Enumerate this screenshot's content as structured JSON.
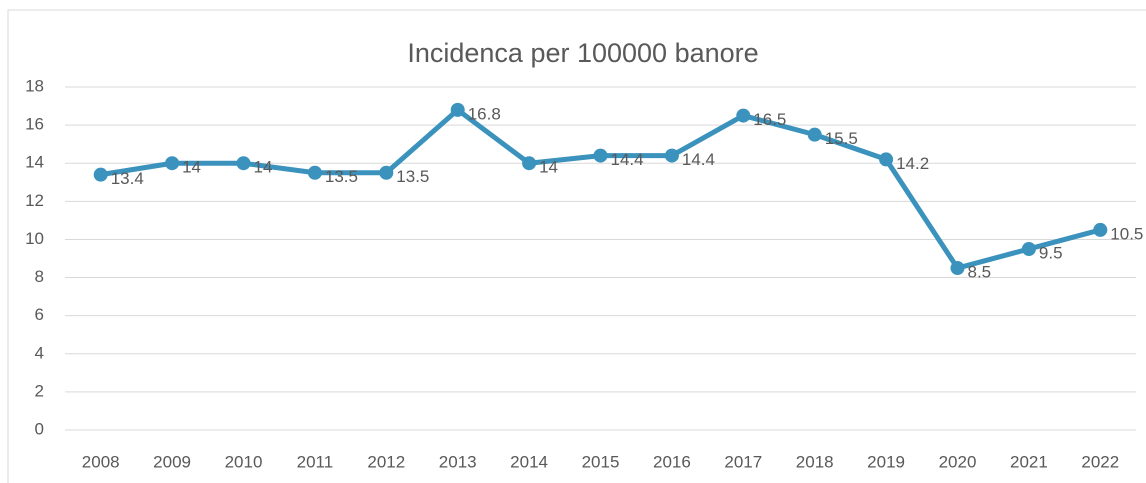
{
  "chart_data": {
    "type": "line",
    "title": "Incidenca per 100000 banore",
    "categories": [
      "2008",
      "2009",
      "2010",
      "2011",
      "2012",
      "2013",
      "2014",
      "2015",
      "2016",
      "2017",
      "2018",
      "2019",
      "2020",
      "2021",
      "2022"
    ],
    "values": [
      13.4,
      14,
      14,
      13.5,
      13.5,
      16.8,
      14,
      14.4,
      14.4,
      16.5,
      15.5,
      14.2,
      8.5,
      9.5,
      10.5
    ],
    "color": "#3a92bd",
    "ylim": [
      0,
      18
    ],
    "yticks": [
      0,
      2,
      4,
      6,
      8,
      10,
      12,
      14,
      16,
      18
    ],
    "grid": true
  }
}
